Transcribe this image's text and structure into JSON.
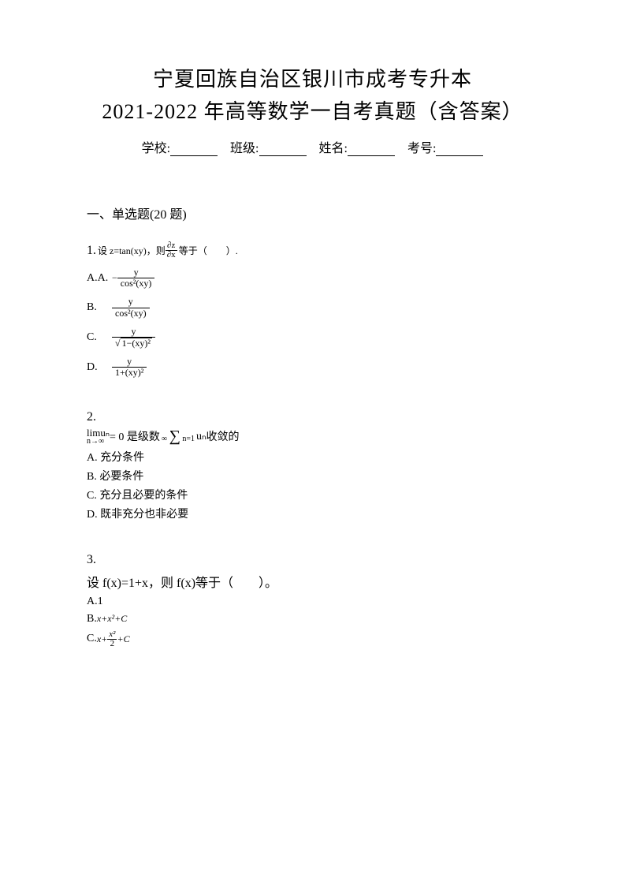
{
  "title": {
    "line1": "宁夏回族自治区银川市成考专升本",
    "line2": "2021-2022 年高等数学一自考真题（含答案）"
  },
  "info": {
    "school_label": "学校:",
    "class_label": "班级:",
    "name_label": "姓名:",
    "exam_no_label": "考号:"
  },
  "section": {
    "heading": "一、单选题(20 题)"
  },
  "q1": {
    "number": "1.",
    "stem_prefix": "设 z=tan(xy)，则",
    "partial": "∂z",
    "partial_den": "∂x",
    "stem_suffix": "等于（　　）.",
    "optA_label": "A.A.",
    "optA_num": "y",
    "optA_den": "cos²(xy)",
    "optB_label": "B.",
    "optB_num": "y",
    "optB_den": "cos²(xy)",
    "optC_label": "C.",
    "optC_num": "y",
    "optC_den_sqrt": "1−(xy)²",
    "optD_label": "D.",
    "optD_num": "y",
    "optD_den": "1+(xy)²"
  },
  "q2": {
    "number": "2.",
    "limit_text": "limuₙ",
    "limit_sub": "n→∞",
    "equals": " = 0 是级数",
    "sum_top": "∞",
    "sum_bottom": "n=1",
    "sum_var": "uₙ",
    "suffix": "收敛的",
    "optA": "A. 充分条件",
    "optB": "B. 必要条件",
    "optC": "C. 充分且必要的条件",
    "optD": "D. 既非充分也非必要"
  },
  "q3": {
    "number": "3.",
    "stem": "设 f(x)=1+x，则 f(x)等于（　　）。",
    "optA": "A.1",
    "optB": "B.",
    "optB_formula": "x+x²+C",
    "optC": "C.",
    "optC_prefix": "x+",
    "optC_num": "x²",
    "optC_den": "2",
    "optC_suffix": "+C"
  },
  "colors": {
    "text": "#000000",
    "background": "#ffffff"
  }
}
